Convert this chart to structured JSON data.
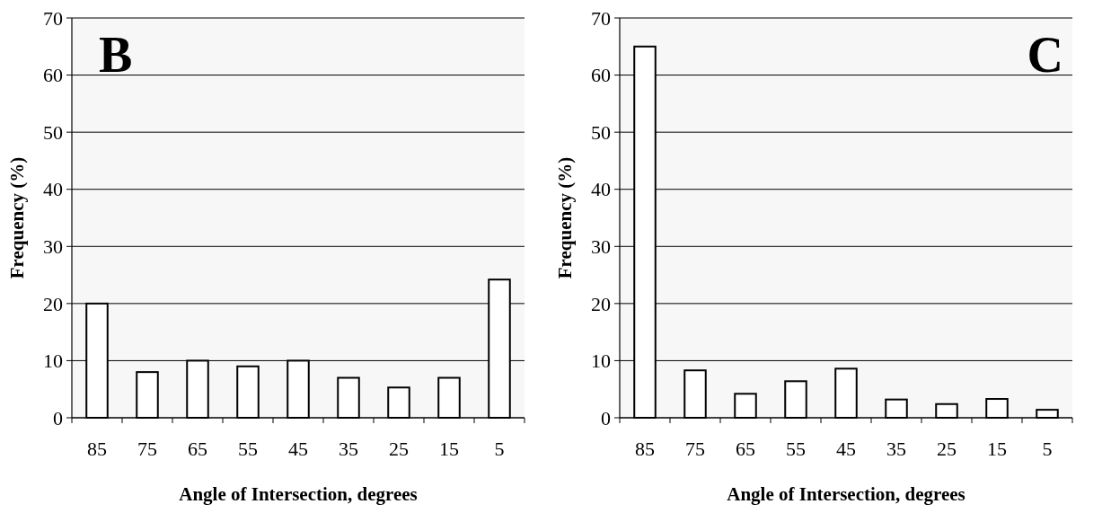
{
  "chart_data": [
    {
      "type": "bar",
      "categories": [
        "85",
        "75",
        "65",
        "55",
        "45",
        "35",
        "25",
        "15",
        "5"
      ],
      "values": [
        20,
        8,
        10,
        9,
        10,
        7,
        5.3,
        7,
        24.2
      ],
      "color": "#ffffff",
      "xlabel": "Angle of Intersection, degrees",
      "ylabel": "Frequency (%)",
      "ylim": [
        0,
        70
      ],
      "yticks": [
        0,
        10,
        20,
        30,
        40,
        50,
        60,
        70
      ],
      "grid": "y",
      "annotations": [
        "B"
      ]
    },
    {
      "type": "bar",
      "categories": [
        "85",
        "75",
        "65",
        "55",
        "45",
        "35",
        "25",
        "15",
        "5"
      ],
      "values": [
        65,
        8.3,
        4.2,
        6.4,
        8.6,
        3.2,
        2.4,
        3.3,
        1.4
      ],
      "color": "#ffffff",
      "xlabel": "Angle of Intersection, degrees",
      "ylabel": "Frequency (%)",
      "ylim": [
        0,
        70
      ],
      "yticks": [
        0,
        10,
        20,
        30,
        40,
        50,
        60,
        70
      ],
      "grid": "y",
      "annotations": [
        "C"
      ]
    }
  ]
}
